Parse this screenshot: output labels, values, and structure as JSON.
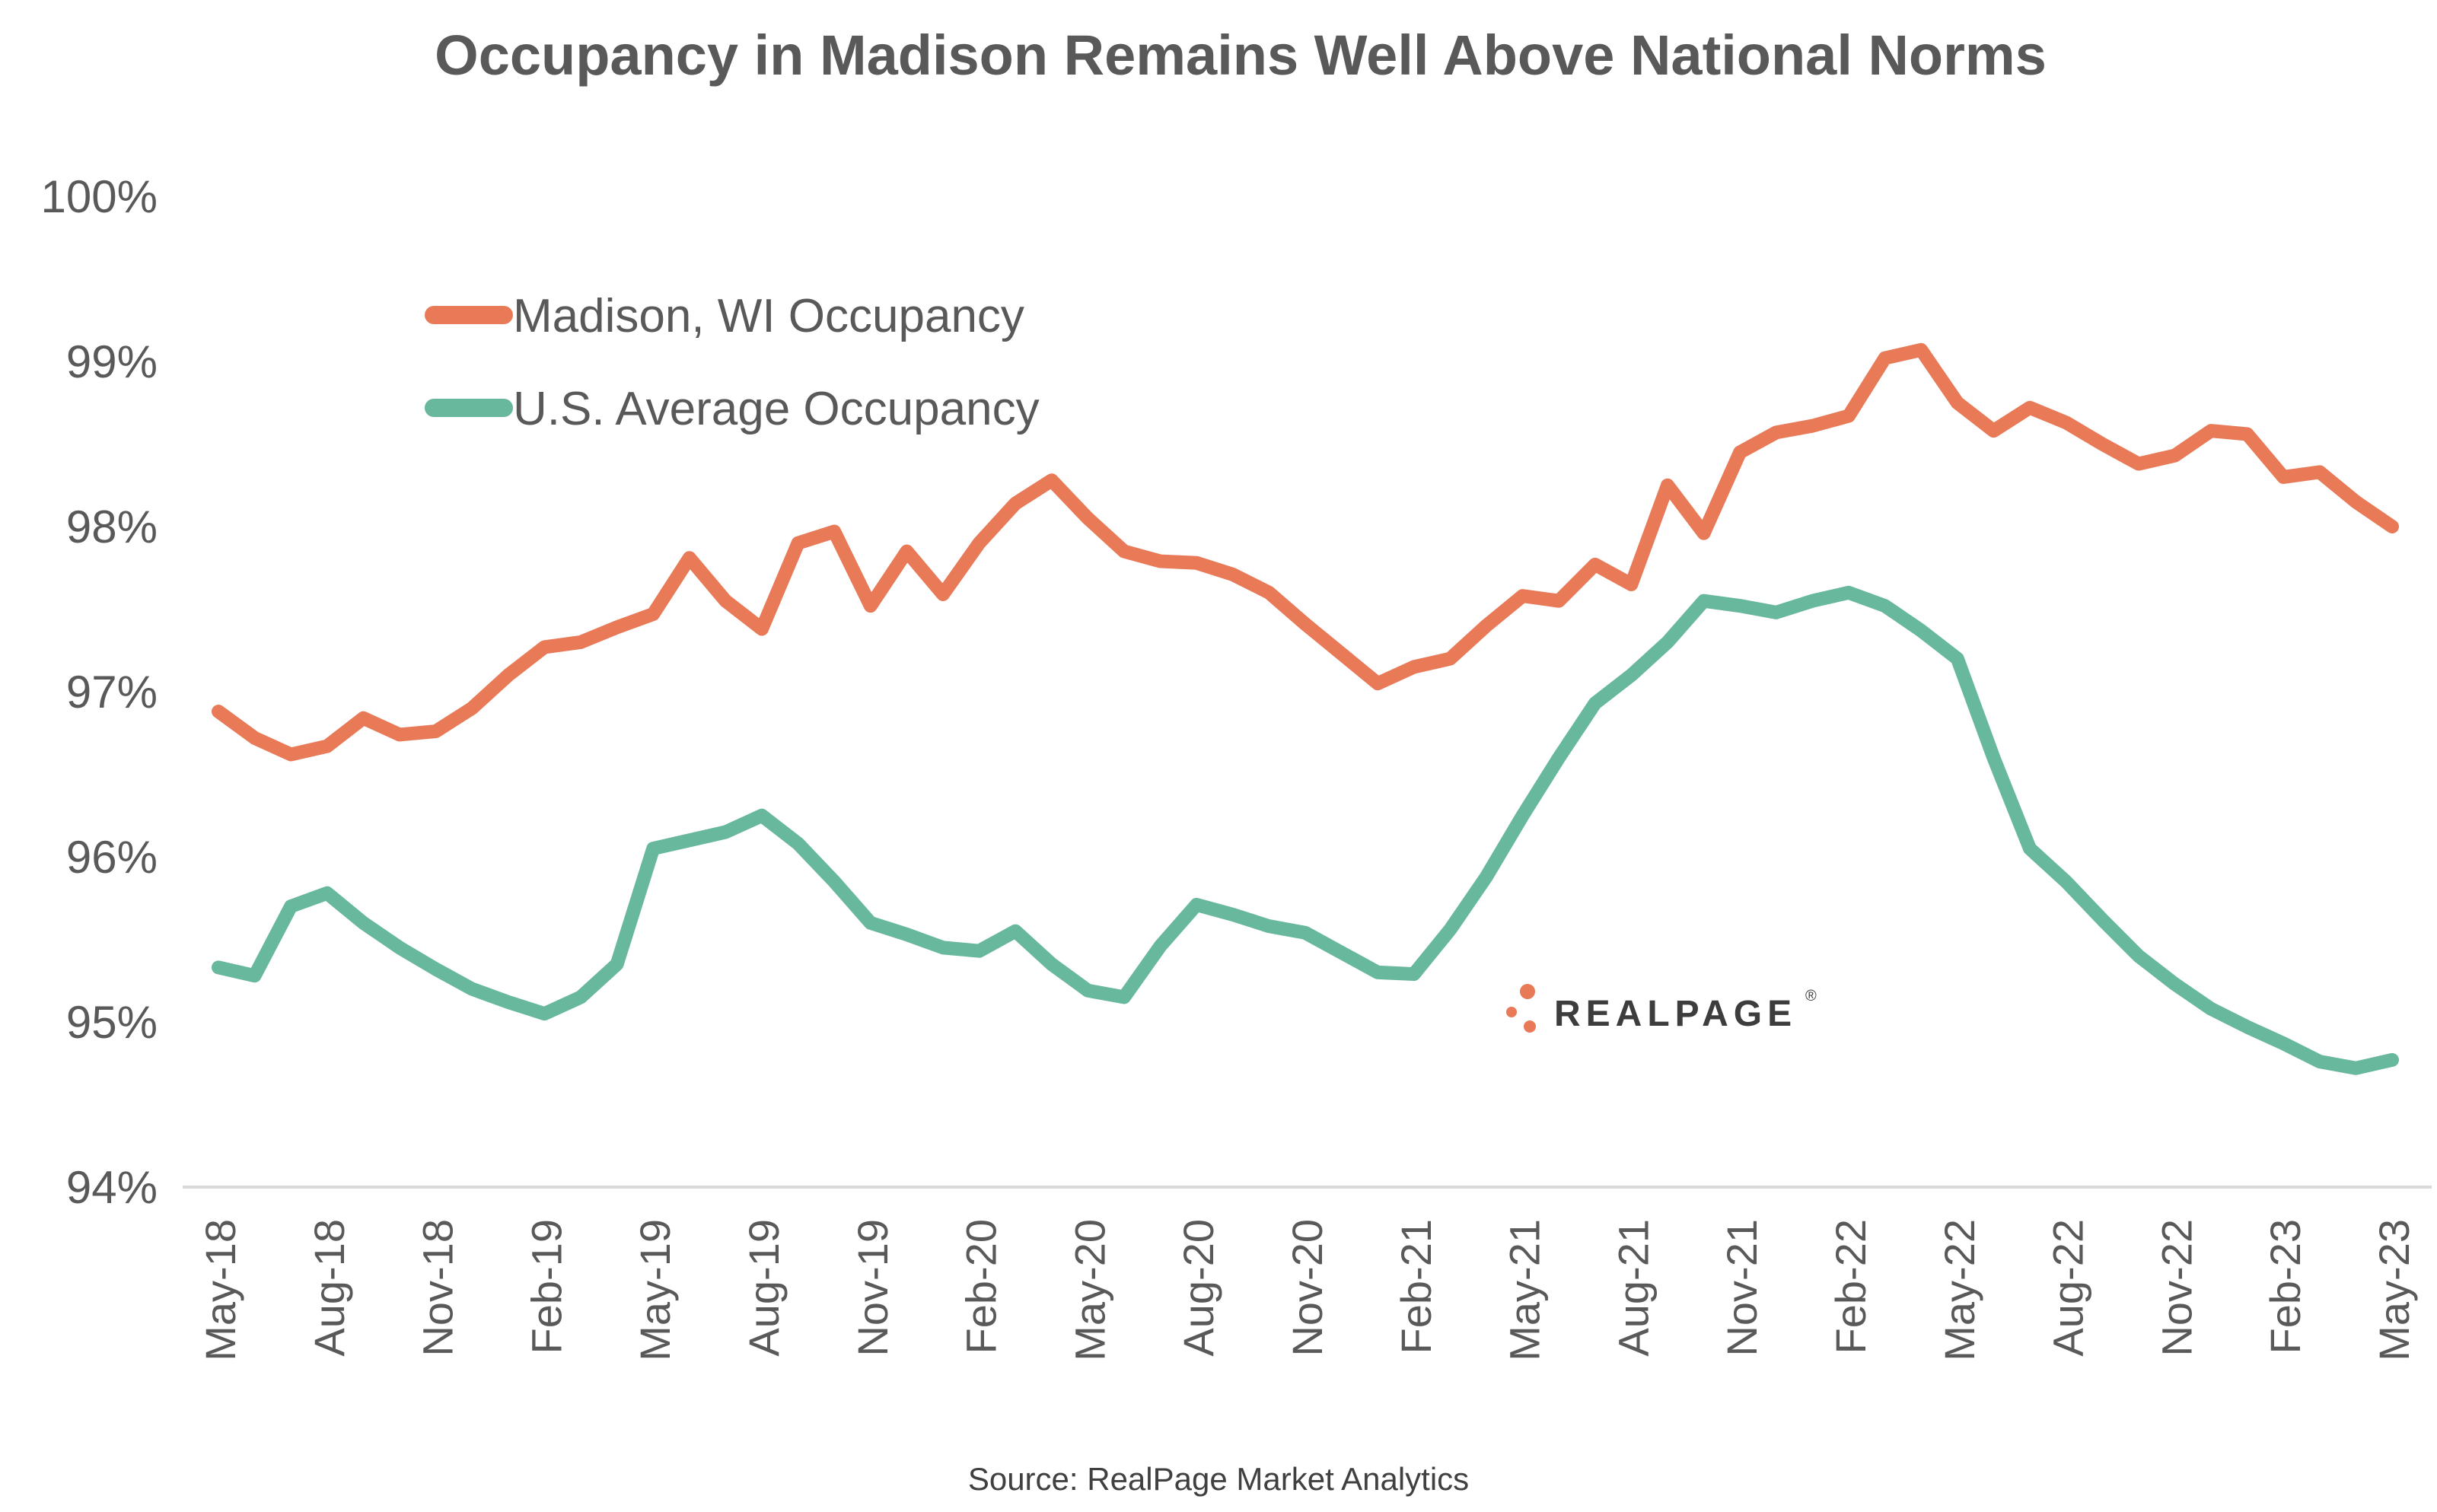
{
  "title": "Occupancy in Madison Remains Well Above National Norms",
  "source": "Source: RealPage Market Analytics",
  "logo": {
    "text": "REALPAGE",
    "mark": "three-orange-dots",
    "reg_mark": "®"
  },
  "colors": {
    "madison_orange": "#E87A58",
    "us_teal": "#68B89D",
    "axis_line": "#D9D9D9",
    "text_gray": "#595959",
    "source_gray": "#404040",
    "logo_gray": "#3d3d3d"
  },
  "legend": [
    {
      "label": "Madison, WI Occupancy",
      "color": "#E87A58"
    },
    {
      "label": "U.S. Average Occupancy",
      "color": "#68B89D"
    }
  ],
  "chart_data": {
    "type": "line",
    "title": "Occupancy in Madison Remains Well Above National Norms",
    "xlabel": "",
    "ylabel": "",
    "ylim": [
      94,
      100
    ],
    "grid": false,
    "legend_position": "inside-top-left",
    "yticks": [
      {
        "label": "100%",
        "value": 100
      },
      {
        "label": "99%",
        "value": 99
      },
      {
        "label": "98%",
        "value": 98
      },
      {
        "label": "97%",
        "value": 97
      },
      {
        "label": "96%",
        "value": 96
      },
      {
        "label": "95%",
        "value": 95
      },
      {
        "label": "94%",
        "value": 94
      }
    ],
    "x_tick_every": 3,
    "categories": [
      "May-18",
      "Jun-18",
      "Jul-18",
      "Aug-18",
      "Sep-18",
      "Oct-18",
      "Nov-18",
      "Dec-18",
      "Jan-19",
      "Feb-19",
      "Mar-19",
      "Apr-19",
      "May-19",
      "Jun-19",
      "Jul-19",
      "Aug-19",
      "Sep-19",
      "Oct-19",
      "Nov-19",
      "Dec-19",
      "Jan-20",
      "Feb-20",
      "Mar-20",
      "Apr-20",
      "May-20",
      "Jun-20",
      "Jul-20",
      "Aug-20",
      "Sep-20",
      "Oct-20",
      "Nov-20",
      "Dec-20",
      "Jan-21",
      "Feb-21",
      "Mar-21",
      "Apr-21",
      "May-21",
      "Jun-21",
      "Jul-21",
      "Aug-21",
      "Sep-21",
      "Oct-21",
      "Nov-21",
      "Dec-21",
      "Jan-22",
      "Feb-22",
      "Mar-22",
      "Apr-22",
      "May-22",
      "Jun-22",
      "Jul-22",
      "Aug-22",
      "Sep-22",
      "Oct-22",
      "Nov-22",
      "Dec-22",
      "Jan-23",
      "Feb-23",
      "Mar-23",
      "Apr-23",
      "May-23"
    ],
    "series": [
      {
        "name": "Madison, WI Occupancy",
        "color": "#E87A58",
        "values": [
          96.88,
          96.72,
          96.62,
          96.67,
          96.84,
          96.74,
          96.76,
          96.9,
          97.1,
          97.27,
          97.3,
          97.39,
          97.47,
          97.81,
          97.55,
          97.38,
          97.9,
          97.97,
          97.52,
          97.85,
          97.59,
          97.9,
          98.14,
          98.28,
          98.05,
          97.85,
          97.79,
          97.78,
          97.71,
          97.6,
          97.41,
          97.23,
          97.05,
          97.15,
          97.2,
          97.4,
          97.58,
          97.55,
          97.77,
          97.65,
          98.25,
          97.96,
          98.45,
          98.57,
          98.61,
          98.67,
          99.02,
          99.07,
          98.75,
          98.58,
          98.72,
          98.63,
          98.5,
          98.38,
          98.43,
          98.58,
          98.56,
          98.3,
          98.33,
          98.15,
          98.0
        ]
      },
      {
        "name": "U.S. Average Occupancy",
        "color": "#68B89D",
        "values": [
          95.33,
          95.28,
          95.7,
          95.78,
          95.6,
          95.45,
          95.32,
          95.2,
          95.12,
          95.05,
          95.15,
          95.35,
          96.05,
          96.1,
          96.15,
          96.25,
          96.08,
          95.85,
          95.6,
          95.53,
          95.45,
          95.43,
          95.55,
          95.35,
          95.19,
          95.15,
          95.46,
          95.71,
          95.65,
          95.58,
          95.54,
          95.42,
          95.3,
          95.29,
          95.56,
          95.88,
          96.25,
          96.6,
          96.93,
          97.1,
          97.3,
          97.55,
          97.52,
          97.48,
          97.55,
          97.6,
          97.52,
          97.37,
          97.2,
          96.6,
          96.05,
          95.85,
          95.62,
          95.4,
          95.23,
          95.08,
          94.97,
          94.87,
          94.76,
          94.72,
          94.77
        ]
      }
    ]
  }
}
